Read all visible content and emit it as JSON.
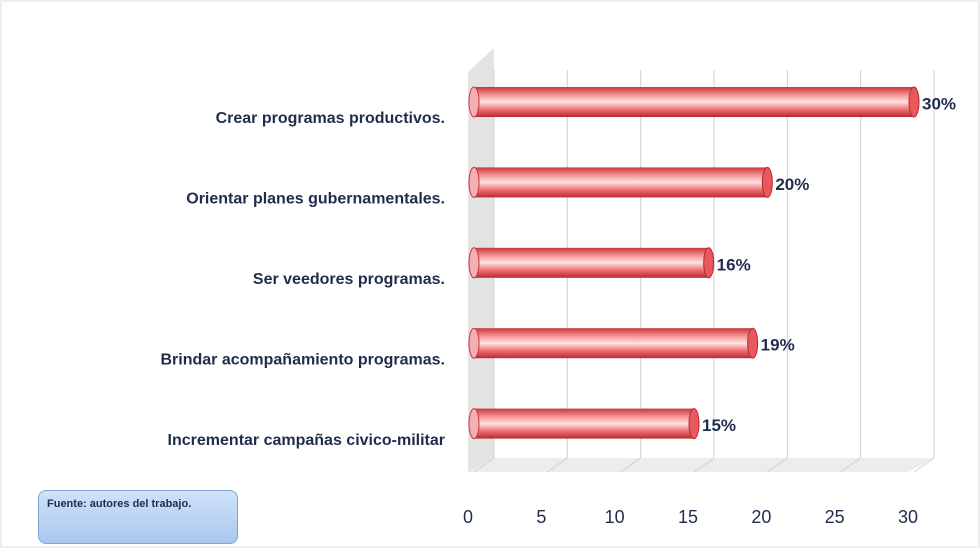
{
  "chart_data": {
    "type": "bar",
    "orientation": "horizontal",
    "categories": [
      "Crear programas productivos.",
      "Orientar planes gubernamentales.",
      "Ser veedores programas.",
      "Brindar acompañamiento programas.",
      "Incrementar campañas civico-militar"
    ],
    "values": [
      30,
      20,
      16,
      19,
      15
    ],
    "value_labels": [
      "30%",
      "20%",
      "16%",
      "19%",
      "15%"
    ],
    "color": "#e8585c",
    "xlim": [
      0,
      30
    ],
    "xticks": [
      0,
      5,
      10,
      15,
      20,
      25,
      30
    ],
    "grid": true,
    "note": "Fuente: autores del trabajo."
  }
}
